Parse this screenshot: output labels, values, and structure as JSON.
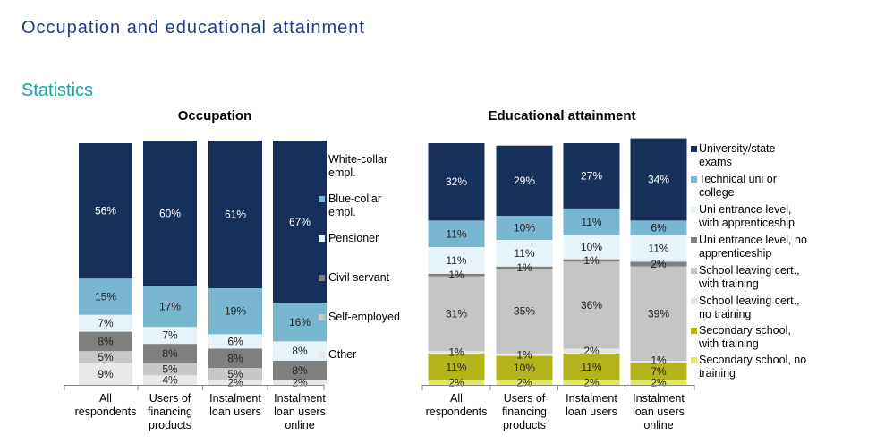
{
  "header": {
    "title": "Occupation and educational attainment",
    "section": "Statistics"
  },
  "colors": {
    "title": "#1f3b8f",
    "section": "#1aa3a3"
  },
  "chart_data": [
    {
      "type": "bar",
      "stacked": true,
      "title": "Occupation",
      "unit": "%",
      "categories": [
        [
          "All",
          "respondents"
        ],
        [
          "Users of",
          "financing",
          "products"
        ],
        [
          "Instalment",
          "loan users"
        ],
        [
          "Instalment",
          "loan users",
          "online"
        ]
      ],
      "series": [
        {
          "name": "Other",
          "legend": [
            "Other"
          ],
          "color": "#e8e8e8",
          "values": [
            9,
            4,
            2,
            2
          ],
          "labels": [
            "9%",
            "4%",
            "2%",
            "2%"
          ]
        },
        {
          "name": "Self-employed",
          "legend": [
            "Self-employed"
          ],
          "color": "#c8c8c8",
          "values": [
            5,
            5,
            5,
            0
          ],
          "labels": [
            "5%",
            "5%",
            "5%",
            ""
          ]
        },
        {
          "name": "Civil servant",
          "legend": [
            "Civil servant"
          ],
          "color": "#7f7f7f",
          "values": [
            8,
            8,
            8,
            8
          ],
          "labels": [
            "8%",
            "8%",
            "8%",
            "8%"
          ]
        },
        {
          "name": "Pensioner",
          "legend": [
            "Pensioner"
          ],
          "color": "#e6f3f8",
          "values": [
            7,
            7,
            6,
            8
          ],
          "labels": [
            "7%",
            "7%",
            "6%",
            "8%"
          ]
        },
        {
          "name": "Blue-collar empl.",
          "legend": [
            "Blue-collar",
            "empl."
          ],
          "color": "#79b6cf",
          "values": [
            15,
            17,
            19,
            16
          ],
          "labels": [
            "15%",
            "17%",
            "19%",
            "16%"
          ]
        },
        {
          "name": "White-collar empl.",
          "legend": [
            "White-collar",
            "empl."
          ],
          "color": "#17305a",
          "values": [
            56,
            60,
            61,
            67
          ],
          "labels": [
            "56%",
            "60%",
            "61%",
            "67%"
          ]
        }
      ]
    },
    {
      "type": "bar",
      "stacked": true,
      "title": "Educational attainment",
      "unit": "%",
      "categories": [
        [
          "All",
          "respondents"
        ],
        [
          "Users of",
          "financing",
          "products"
        ],
        [
          "Instalment",
          "loan users"
        ],
        [
          "Instalment",
          "loan users",
          "online"
        ]
      ],
      "series": [
        {
          "name": "Secondary school, no training",
          "legend": [
            "Secondary school, no",
            "training"
          ],
          "color": "#e3e86a",
          "values": [
            2,
            2,
            2,
            2
          ],
          "labels": [
            "2%",
            "2%",
            "2%",
            "2%"
          ]
        },
        {
          "name": "Secondary school, with training",
          "legend": [
            "Secondary school,",
            "with training"
          ],
          "color": "#b3b51a",
          "values": [
            11,
            10,
            11,
            7
          ],
          "labels": [
            "11%",
            "10%",
            "11%",
            "7%"
          ]
        },
        {
          "name": "School leaving cert., no training",
          "legend": [
            "School leaving cert.,",
            "no training"
          ],
          "color": "#e6e6e6",
          "values": [
            1,
            1,
            2,
            1
          ],
          "labels": [
            "1%",
            "1%",
            "2%",
            "1%"
          ]
        },
        {
          "name": "School leaving cert., with training",
          "legend": [
            "School leaving cert.,",
            "with training"
          ],
          "color": "#c4c4c4",
          "values": [
            31,
            35,
            36,
            39
          ],
          "labels": [
            "31%",
            "35%",
            "36%",
            "39%"
          ]
        },
        {
          "name": "Uni entrance level, no apprenticeship",
          "legend": [
            "Uni entrance level, no",
            "apprenticeship"
          ],
          "color": "#7f7f7f",
          "values": [
            1,
            1,
            1,
            2
          ],
          "labels": [
            "1%",
            "1%",
            "1%",
            "2%"
          ]
        },
        {
          "name": "Uni entrance level, with apprenticeship",
          "legend": [
            "Uni entrance level,",
            "with apprenticeship"
          ],
          "color": "#e6f3f8",
          "values": [
            11,
            11,
            10,
            11
          ],
          "labels": [
            "11%",
            "11%",
            "10%",
            "11%"
          ]
        },
        {
          "name": "Technical uni or college",
          "legend": [
            "Technical uni or",
            "college"
          ],
          "color": "#79b6cf",
          "values": [
            11,
            10,
            11,
            6
          ],
          "labels": [
            "11%",
            "10%",
            "11%",
            "6%"
          ]
        },
        {
          "name": "University/state exams",
          "legend": [
            "University/state",
            "exams"
          ],
          "color": "#17305a",
          "values": [
            32,
            29,
            27,
            34
          ],
          "labels": [
            "32%",
            "29%",
            "27%",
            "34%"
          ]
        }
      ]
    }
  ]
}
